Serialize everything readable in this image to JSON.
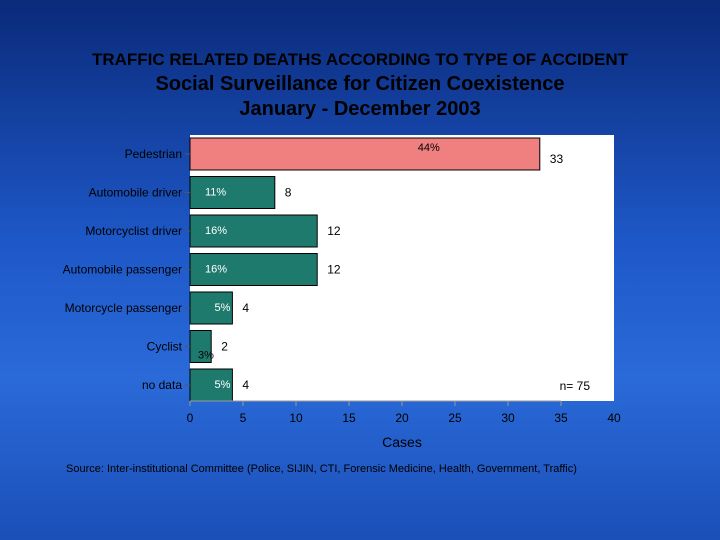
{
  "title_line1": "TRAFFIC RELATED DEATHS ACCORDING TO TYPE OF ACCIDENT",
  "title_line2": "Social Surveillance for Citizen Coexistence",
  "title_line3": "January - December 2003",
  "source": "Source: Inter-institutional Committee  (Police, SIJIN, CTI, Forensic Medicine, Health, Government, Traffic)",
  "colors": {
    "highlight_bar": "#f08080",
    "bar": "#1f7a6e",
    "plot_background": "#ffffff"
  },
  "chart_data": {
    "type": "bar",
    "orientation": "horizontal",
    "categories": [
      "Pedestrian",
      "Automobile driver",
      "Motorcyclist driver",
      "Automobile passenger",
      "Motorcycle passenger",
      "Cyclist",
      "no data"
    ],
    "values": [
      33,
      8,
      12,
      12,
      4,
      2,
      4
    ],
    "percent_labels": [
      "44%",
      "11%",
      "16%",
      "16%",
      "5%",
      "3%",
      "5%"
    ],
    "xlabel": "Cases",
    "xlim": [
      0,
      40
    ],
    "xticks": [
      0,
      5,
      10,
      15,
      20,
      25,
      30,
      35,
      40
    ],
    "annotation": "n= 75",
    "grid": false
  }
}
